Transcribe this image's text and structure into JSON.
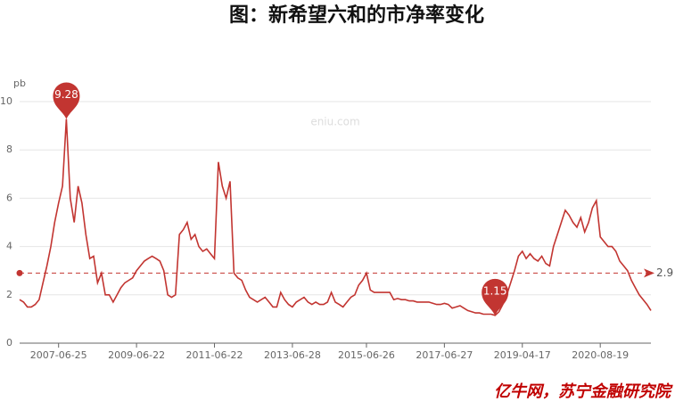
{
  "chart_data": {
    "type": "line",
    "title": "图：新希望六和的市净率变化",
    "y_label": "pb",
    "watermark": "eniu.com",
    "source": "亿牛网，苏宁金融研究院",
    "color": "#c23531",
    "ylim": [
      0,
      10
    ],
    "yticks": [
      0,
      2,
      4,
      6,
      8,
      10
    ],
    "grid": true,
    "mark_max_min": true,
    "average_line": 2.9,
    "categories": [
      null,
      null,
      null,
      null,
      null,
      null,
      null,
      null,
      null,
      null,
      "2007-06-25",
      null,
      null,
      null,
      null,
      null,
      null,
      null,
      null,
      null,
      null,
      null,
      null,
      null,
      null,
      null,
      null,
      null,
      null,
      null,
      "2009-06-22",
      null,
      null,
      null,
      null,
      null,
      null,
      null,
      null,
      null,
      null,
      null,
      null,
      null,
      null,
      null,
      null,
      null,
      null,
      null,
      "2011-06-22",
      null,
      null,
      null,
      null,
      null,
      null,
      null,
      null,
      null,
      null,
      null,
      null,
      null,
      null,
      null,
      null,
      null,
      null,
      null,
      "2013-06-28",
      null,
      null,
      null,
      null,
      null,
      null,
      null,
      null,
      null,
      null,
      null,
      null,
      null,
      null,
      null,
      null,
      null,
      null,
      "2015-06-26",
      null,
      null,
      null,
      null,
      null,
      null,
      null,
      null,
      null,
      null,
      null,
      null,
      null,
      null,
      null,
      null,
      null,
      null,
      null,
      "2017-06-27",
      null,
      null,
      null,
      null,
      null,
      null,
      null,
      null,
      null,
      null,
      null,
      null,
      null,
      null,
      null,
      null,
      null,
      null,
      null,
      "2019-04-17",
      null,
      null,
      null,
      null,
      null,
      null,
      null,
      null,
      null,
      null,
      null,
      null,
      null,
      null,
      null,
      null,
      null,
      null,
      null,
      "2020-08-19",
      null,
      null,
      null,
      null,
      null,
      null,
      null,
      null,
      null,
      null,
      null,
      null,
      null
    ],
    "values": [
      1.8,
      1.7,
      1.5,
      1.5,
      1.6,
      1.8,
      2.5,
      3.2,
      4.0,
      5.0,
      5.8,
      6.5,
      9.28,
      6.0,
      5.0,
      6.5,
      5.8,
      4.5,
      3.5,
      3.6,
      2.5,
      2.9,
      2.0,
      2.0,
      1.7,
      2.0,
      2.3,
      2.5,
      2.6,
      2.7,
      3.0,
      3.2,
      3.4,
      3.5,
      3.6,
      3.5,
      3.4,
      3.0,
      2.0,
      1.9,
      2.0,
      4.5,
      4.7,
      5.0,
      4.3,
      4.5,
      4.0,
      3.8,
      3.9,
      3.7,
      3.5,
      7.5,
      6.5,
      6.0,
      6.7,
      2.9,
      2.7,
      2.6,
      2.2,
      1.9,
      1.8,
      1.7,
      1.8,
      1.9,
      1.7,
      1.5,
      1.5,
      2.1,
      1.8,
      1.6,
      1.5,
      1.7,
      1.8,
      1.9,
      1.7,
      1.6,
      1.7,
      1.6,
      1.6,
      1.7,
      2.1,
      1.7,
      1.6,
      1.5,
      1.7,
      1.9,
      2.0,
      2.4,
      2.6,
      2.9,
      2.2,
      2.1,
      2.1,
      2.1,
      2.1,
      2.1,
      1.8,
      1.85,
      1.8,
      1.8,
      1.75,
      1.75,
      1.7,
      1.7,
      1.7,
      1.7,
      1.65,
      1.6,
      1.6,
      1.65,
      1.6,
      1.45,
      1.5,
      1.55,
      1.45,
      1.35,
      1.3,
      1.25,
      1.25,
      1.2,
      1.2,
      1.2,
      1.15,
      1.3,
      1.6,
      2.0,
      2.5,
      3.0,
      3.6,
      3.8,
      3.5,
      3.7,
      3.5,
      3.4,
      3.6,
      3.3,
      3.2,
      4.0,
      4.5,
      5.0,
      5.5,
      5.3,
      5.0,
      4.8,
      5.2,
      4.6,
      5.0,
      5.6,
      5.9,
      4.4,
      4.2,
      4.0,
      4.0,
      3.8,
      3.4,
      3.2,
      3.0,
      2.6,
      2.3,
      2.0,
      1.8,
      1.6,
      1.35
    ]
  }
}
